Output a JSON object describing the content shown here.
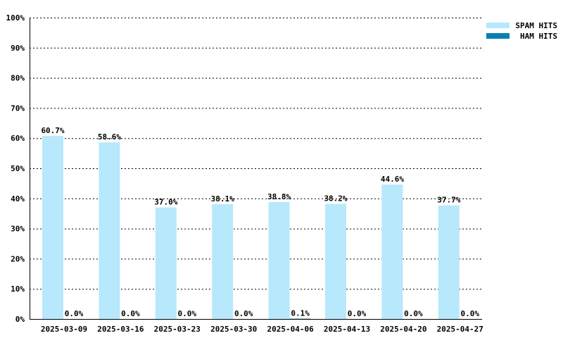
{
  "chart_data": {
    "type": "bar",
    "categories": [
      "2025-03-09",
      "2025-03-16",
      "2025-03-23",
      "2025-03-30",
      "2025-04-06",
      "2025-04-13",
      "2025-04-20",
      "2025-04-27"
    ],
    "series": [
      {
        "name": "SPAM HITS",
        "color": "#b8e8fc",
        "values": [
          60.7,
          58.6,
          37.0,
          38.1,
          38.8,
          38.2,
          44.6,
          37.7
        ],
        "labels": [
          "60.7%",
          "58.6%",
          "37.0%",
          "38.1%",
          "38.8%",
          "38.2%",
          "44.6%",
          "37.7%"
        ]
      },
      {
        "name": "HAM HITS",
        "color": "#0b80b0",
        "values": [
          0.0,
          0.0,
          0.0,
          0.0,
          0.1,
          0.0,
          0.0,
          0.0
        ],
        "labels": [
          "0.0%",
          "0.0%",
          "0.0%",
          "0.0%",
          "0.1%",
          "0.0%",
          "0.0%",
          "0.0%"
        ]
      }
    ],
    "ylim": [
      0,
      100
    ],
    "yticks": [
      0,
      10,
      20,
      30,
      40,
      50,
      60,
      70,
      80,
      90,
      100
    ],
    "ytick_labels": [
      "0%",
      "10%",
      "20%",
      "30%",
      "40%",
      "50%",
      "60%",
      "70%",
      "80%",
      "90%",
      "100%"
    ],
    "title": "",
    "xlabel": "",
    "ylabel": "",
    "grid": true,
    "legend_position": "top-right"
  }
}
